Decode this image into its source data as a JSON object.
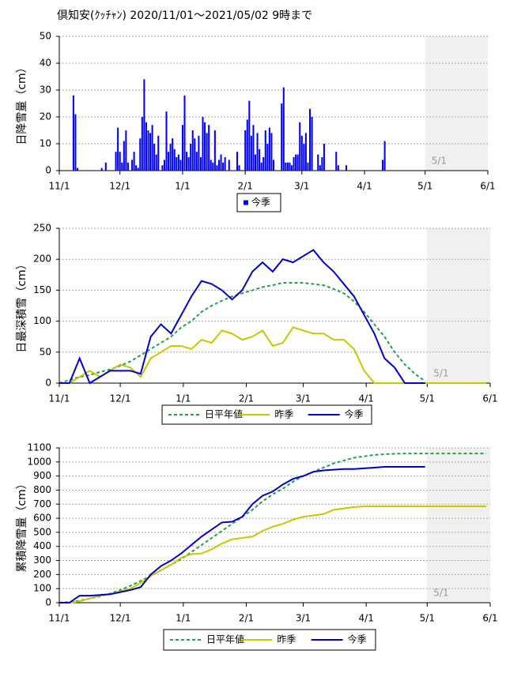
{
  "title": "倶知安(ｸｯﾁｬﾝ) 2020/11/01～2021/05/02 9時まで",
  "chart_data": [
    {
      "type": "bar",
      "ylabel": "日降雪量（cm）",
      "xlim": [
        0,
        212
      ],
      "xticks": [
        {
          "value": 0,
          "label": "11/1"
        },
        {
          "value": 30,
          "label": "12/1"
        },
        {
          "value": 61,
          "label": "1/1"
        },
        {
          "value": 92,
          "label": "2/1"
        },
        {
          "value": 120,
          "label": "3/1"
        },
        {
          "value": 151,
          "label": "4/1"
        },
        {
          "value": 181,
          "label": "5/1"
        },
        {
          "value": 212,
          "label": "6/1"
        }
      ],
      "ylim": [
        0,
        50
      ],
      "yticks": [
        0,
        10,
        20,
        30,
        40,
        50
      ],
      "grid": true,
      "annotation": {
        "text": "5/1",
        "x": 181
      },
      "x": [
        7,
        8,
        9,
        21,
        23,
        28,
        29,
        30,
        31,
        32,
        33,
        34,
        36,
        37,
        38,
        39,
        40,
        41,
        42,
        43,
        44,
        45,
        46,
        47,
        48,
        49,
        51,
        52,
        53,
        54,
        55,
        56,
        57,
        58,
        59,
        60,
        61,
        62,
        63,
        64,
        65,
        66,
        67,
        68,
        69,
        70,
        71,
        72,
        73,
        74,
        75,
        76,
        77,
        78,
        79,
        80,
        81,
        82,
        84,
        88,
        89,
        92,
        93,
        94,
        95,
        96,
        97,
        98,
        99,
        100,
        101,
        102,
        103,
        104,
        105,
        106,
        110,
        111,
        112,
        113,
        114,
        115,
        116,
        117,
        118,
        119,
        120,
        121,
        122,
        123,
        124,
        125,
        128,
        129,
        130,
        131,
        137,
        138,
        142,
        160,
        161
      ],
      "series": [
        {
          "name": "今季",
          "color": "#0000ff",
          "values": [
            28,
            21,
            1,
            1,
            3,
            7,
            16,
            7,
            3,
            11,
            15,
            3,
            4,
            7,
            2,
            1,
            12,
            20,
            34,
            18,
            15,
            14,
            17,
            10,
            6,
            13,
            2,
            4,
            22,
            7,
            10,
            12,
            8,
            5,
            6,
            4,
            17,
            28,
            7,
            5,
            10,
            15,
            12,
            7,
            13,
            5,
            20,
            18,
            14,
            17,
            4,
            3,
            15,
            2,
            4,
            6,
            3,
            5,
            4,
            7,
            2,
            15,
            19,
            26,
            13,
            17,
            6,
            14,
            8,
            3,
            5,
            15,
            10,
            16,
            14,
            4,
            25,
            31,
            3,
            3,
            3,
            2,
            5,
            6,
            6,
            18,
            13,
            10,
            14,
            3,
            23,
            20,
            6,
            2,
            5,
            10,
            7,
            2,
            2,
            4,
            11
          ]
        }
      ]
    },
    {
      "type": "line",
      "ylabel": "日最深積雪（cm）",
      "xlim": [
        0,
        212
      ],
      "xticks": [
        {
          "value": 0,
          "label": "11/1"
        },
        {
          "value": 30,
          "label": "12/1"
        },
        {
          "value": 61,
          "label": "1/1"
        },
        {
          "value": 92,
          "label": "2/1"
        },
        {
          "value": 120,
          "label": "3/1"
        },
        {
          "value": 151,
          "label": "4/1"
        },
        {
          "value": 181,
          "label": "5/1"
        },
        {
          "value": 212,
          "label": "6/1"
        }
      ],
      "ylim": [
        0,
        250
      ],
      "yticks": [
        0,
        50,
        100,
        150,
        200,
        250
      ],
      "grid": true,
      "annotation": {
        "text": "5/1",
        "x": 181
      },
      "x": [
        0,
        5,
        10,
        15,
        20,
        25,
        30,
        35,
        40,
        45,
        50,
        55,
        60,
        65,
        70,
        75,
        80,
        85,
        90,
        95,
        100,
        105,
        110,
        115,
        120,
        125,
        130,
        135,
        140,
        145,
        150,
        155,
        160,
        165,
        170,
        175,
        180,
        185,
        190,
        195,
        200,
        205,
        210
      ],
      "series": [
        {
          "name": "日平年値",
          "color": "#22a050",
          "dashed": true,
          "values": [
            0,
            5,
            10,
            13,
            18,
            22,
            28,
            35,
            45,
            55,
            65,
            75,
            90,
            100,
            115,
            125,
            133,
            140,
            145,
            150,
            155,
            158,
            162,
            162,
            162,
            160,
            158,
            152,
            145,
            132,
            115,
            95,
            75,
            50,
            30,
            15,
            3,
            null,
            null,
            null,
            null,
            null,
            null
          ]
        },
        {
          "name": "昨季",
          "color": "#c8c800",
          "values": [
            0,
            0,
            10,
            20,
            10,
            20,
            30,
            25,
            10,
            40,
            50,
            60,
            60,
            55,
            70,
            65,
            85,
            80,
            70,
            75,
            85,
            60,
            65,
            90,
            85,
            80,
            80,
            70,
            70,
            55,
            20,
            0,
            0,
            0,
            0,
            0,
            0,
            0,
            0,
            0,
            0,
            0,
            0
          ]
        },
        {
          "name": "今季",
          "color": "#0000cc",
          "values": [
            0,
            0,
            40,
            0,
            10,
            20,
            20,
            20,
            15,
            75,
            95,
            80,
            110,
            140,
            165,
            160,
            150,
            135,
            150,
            180,
            195,
            180,
            200,
            195,
            205,
            215,
            195,
            180,
            160,
            140,
            110,
            80,
            40,
            25,
            0,
            0,
            0,
            null,
            null,
            null,
            null,
            null,
            null
          ]
        }
      ]
    },
    {
      "type": "line",
      "ylabel": "累積降雪量（cm）",
      "xlim": [
        0,
        212
      ],
      "xticks": [
        {
          "value": 0,
          "label": "11/1"
        },
        {
          "value": 30,
          "label": "12/1"
        },
        {
          "value": 61,
          "label": "1/1"
        },
        {
          "value": 92,
          "label": "2/1"
        },
        {
          "value": 120,
          "label": "3/1"
        },
        {
          "value": 151,
          "label": "4/1"
        },
        {
          "value": 181,
          "label": "5/1"
        },
        {
          "value": 212,
          "label": "6/1"
        }
      ],
      "ylim": [
        0,
        1100
      ],
      "yticks": [
        0,
        100,
        200,
        300,
        400,
        500,
        600,
        700,
        800,
        900,
        1000,
        1100
      ],
      "grid": true,
      "annotation": {
        "text": "5/1",
        "x": 181
      },
      "x": [
        0,
        5,
        10,
        15,
        20,
        25,
        30,
        35,
        40,
        45,
        50,
        55,
        60,
        65,
        70,
        75,
        80,
        85,
        90,
        95,
        100,
        105,
        110,
        115,
        120,
        125,
        130,
        135,
        140,
        145,
        150,
        155,
        160,
        165,
        170,
        175,
        180,
        185,
        190,
        195,
        200,
        205,
        210
      ],
      "series": [
        {
          "name": "日平年値",
          "color": "#22a050",
          "dashed": true,
          "values": [
            0,
            5,
            15,
            30,
            45,
            65,
            90,
            120,
            155,
            190,
            230,
            270,
            310,
            360,
            410,
            460,
            510,
            560,
            610,
            660,
            720,
            770,
            810,
            860,
            900,
            930,
            960,
            990,
            1010,
            1030,
            1040,
            1050,
            1055,
            1058,
            1060,
            1060,
            1060,
            1060,
            1060,
            1060,
            1060,
            1060,
            1060
          ]
        },
        {
          "name": "昨季",
          "color": "#c8c800",
          "values": [
            0,
            0,
            10,
            30,
            50,
            60,
            80,
            100,
            140,
            190,
            230,
            270,
            320,
            345,
            350,
            380,
            420,
            450,
            460,
            470,
            510,
            540,
            560,
            590,
            610,
            620,
            630,
            660,
            670,
            680,
            685,
            685,
            685,
            685,
            685,
            685,
            685,
            685,
            685,
            685,
            685,
            685,
            685
          ]
        },
        {
          "name": "今季",
          "color": "#0000cc",
          "values": [
            0,
            0,
            50,
            50,
            55,
            60,
            75,
            90,
            110,
            200,
            260,
            300,
            350,
            410,
            470,
            520,
            570,
            575,
            610,
            700,
            760,
            790,
            840,
            880,
            900,
            930,
            940,
            945,
            950,
            950,
            955,
            960,
            965,
            965,
            965,
            965,
            965,
            null,
            null,
            null,
            null,
            null,
            null
          ]
        }
      ]
    }
  ]
}
